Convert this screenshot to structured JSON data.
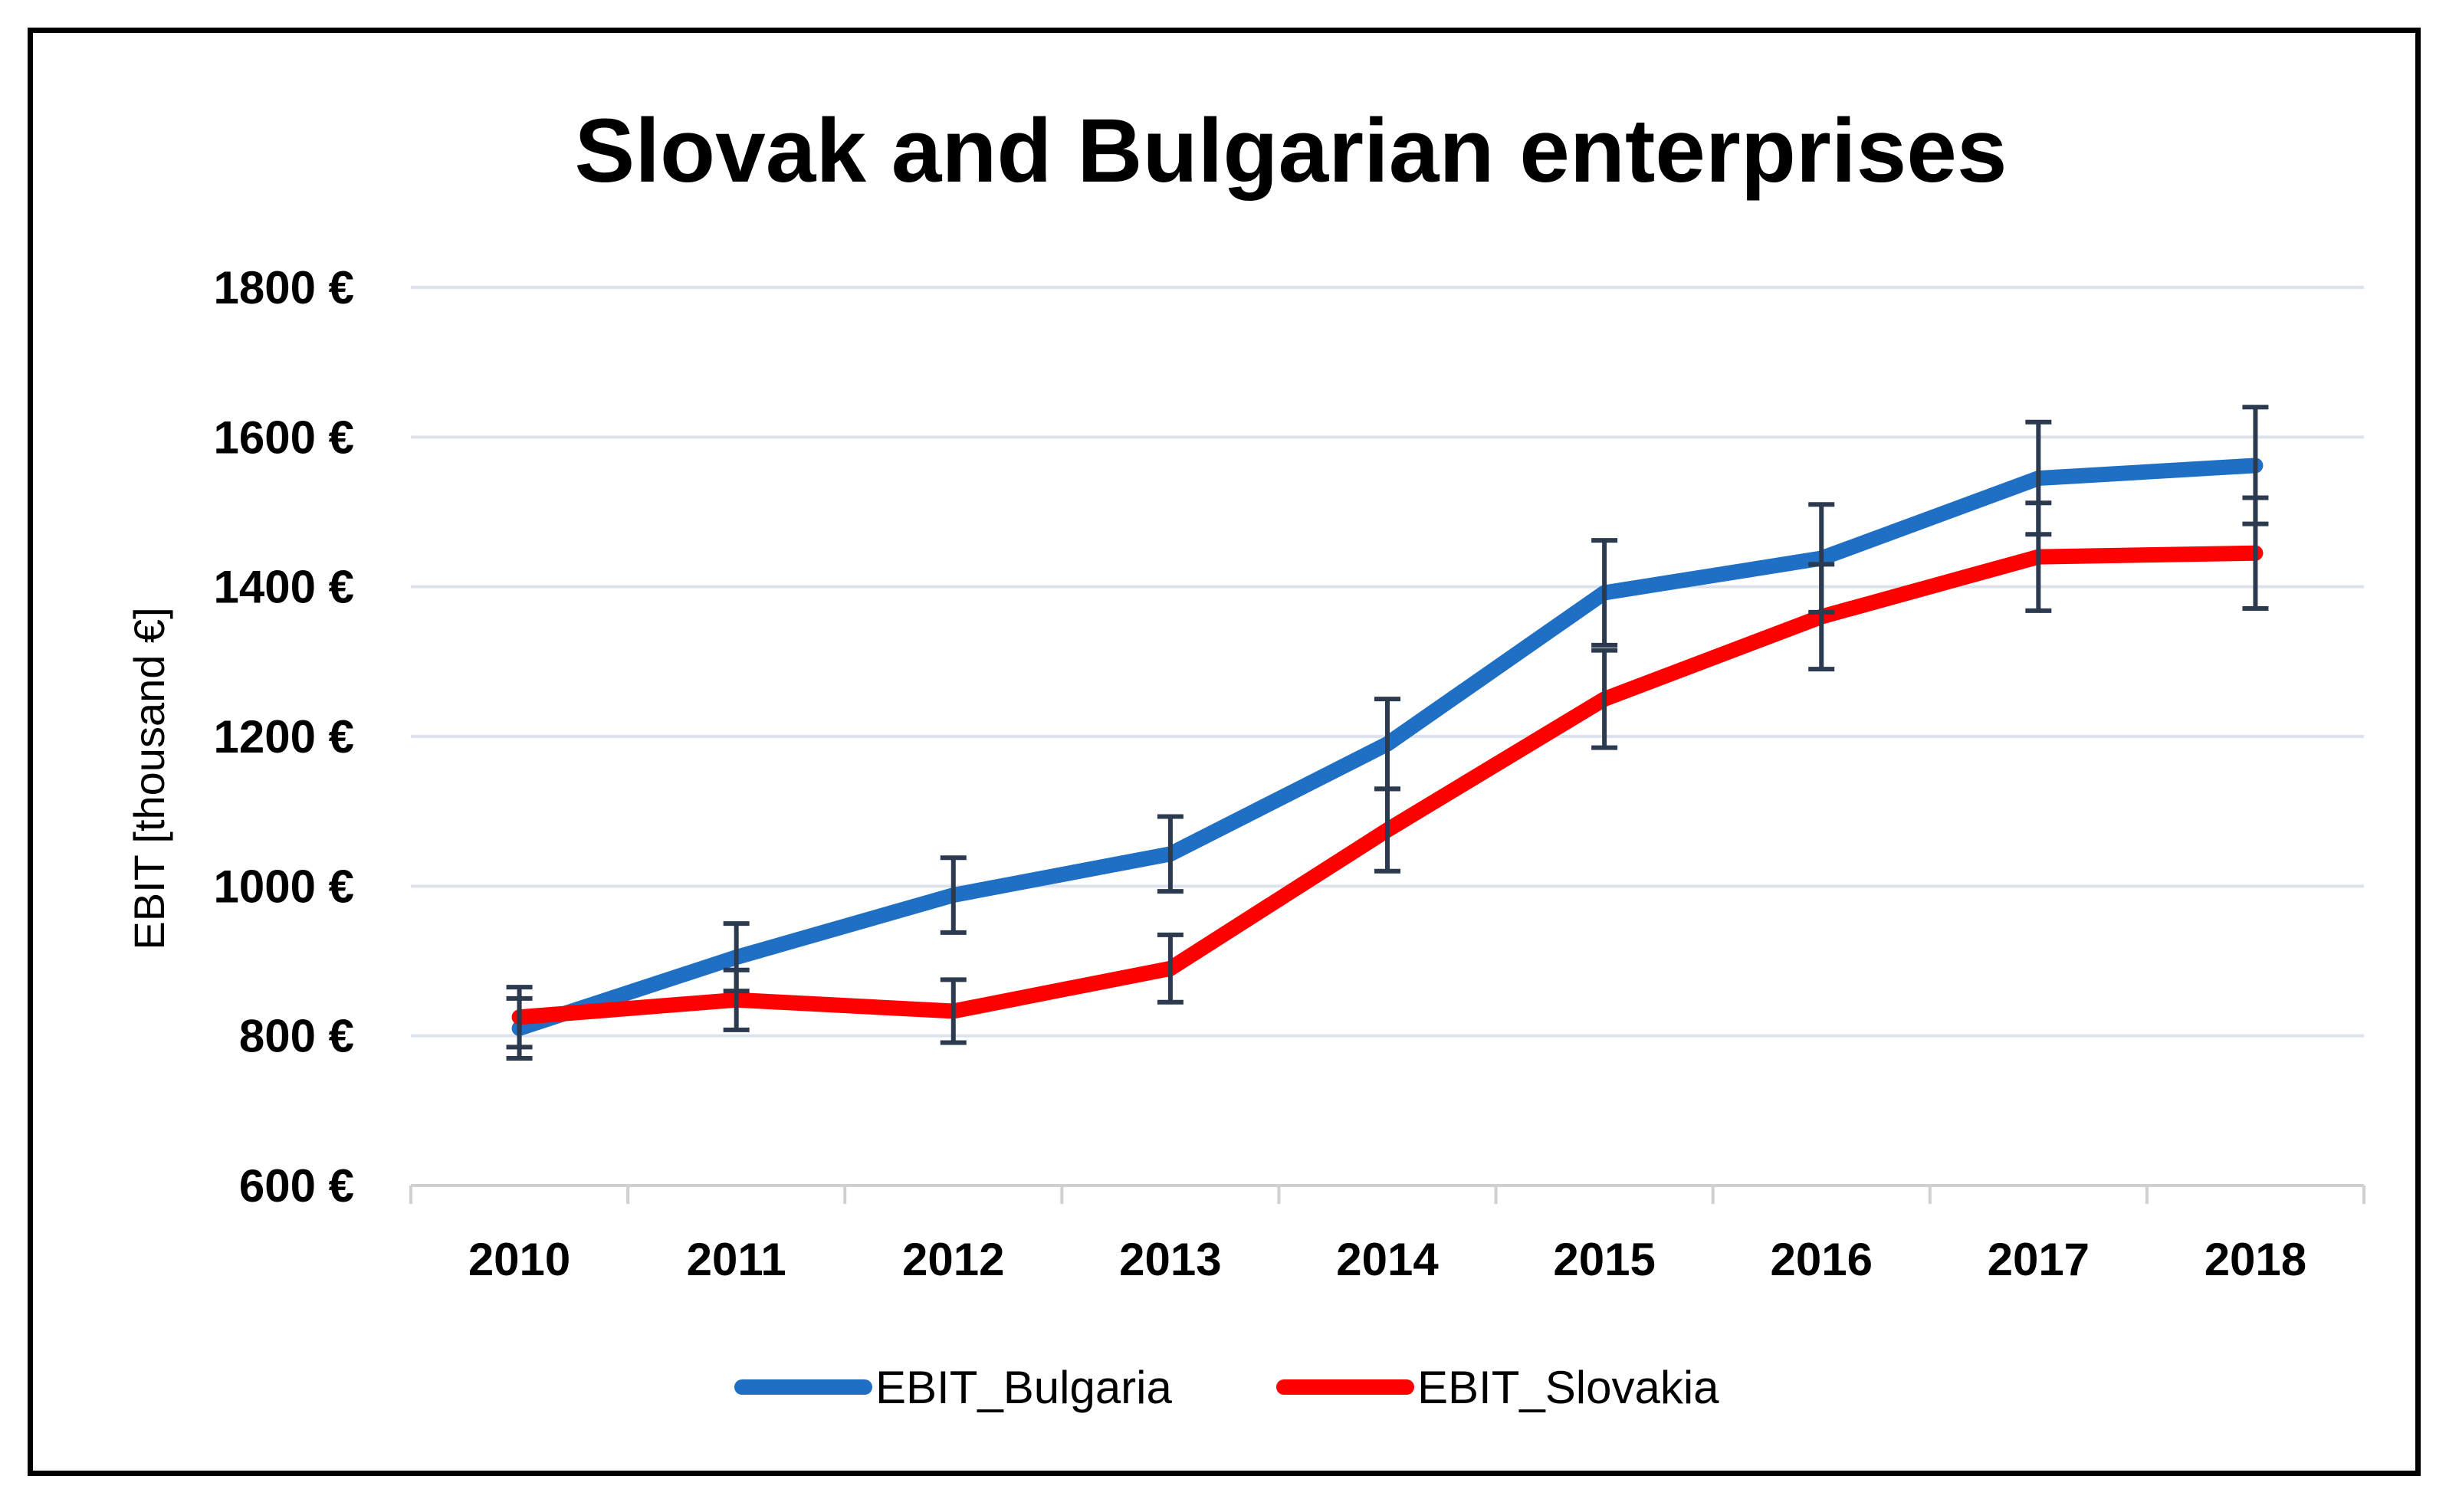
{
  "chart_data": {
    "type": "line",
    "title": "Slovak and Bulgarian enterprises",
    "xlabel": "",
    "ylabel": "EBIT [thousand €]",
    "ylim": [
      600,
      1800
    ],
    "ytick_step": 200,
    "ytick_labels": [
      "600 €",
      "800 €",
      "1000 €",
      "1200 €",
      "1400 €",
      "1600 €",
      "1800 €"
    ],
    "categories": [
      "2010",
      "2011",
      "2012",
      "2013",
      "2014",
      "2015",
      "2016",
      "2017",
      "2018"
    ],
    "grid": true,
    "legend_position": "bottom-center",
    "series": [
      {
        "name": "EBIT_Bulgaria",
        "color": "#1f6fc5",
        "values": [
          810,
          905,
          988,
          1043,
          1190,
          1392,
          1438,
          1545,
          1562
        ],
        "error": [
          40,
          45,
          50,
          50,
          60,
          70,
          72,
          75,
          78
        ]
      },
      {
        "name": "EBIT_Slovakia",
        "color": "#ff0000",
        "values": [
          825,
          848,
          833,
          890,
          1075,
          1250,
          1360,
          1440,
          1445
        ],
        "error": [
          40,
          40,
          42,
          45,
          55,
          65,
          70,
          72,
          74
        ]
      }
    ],
    "error_bar_color": "#2b3a4e"
  }
}
